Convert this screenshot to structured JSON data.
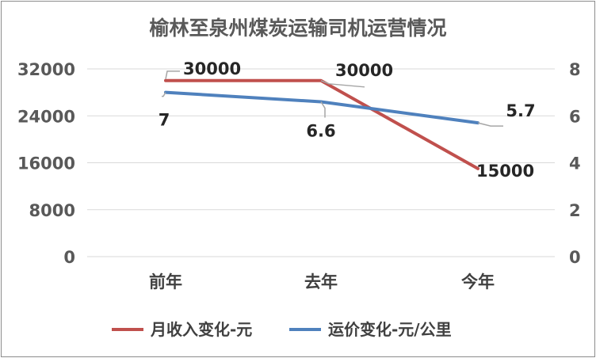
{
  "chart_data": {
    "type": "line",
    "title": "榆林至泉州煤炭运输司机运营情况",
    "categories": [
      "前年",
      "去年",
      "今年"
    ],
    "y_left": {
      "ticks": [
        "32000",
        "24000",
        "16000",
        "8000",
        "0"
      ],
      "ylim": [
        0,
        32000
      ]
    },
    "y_right": {
      "ticks": [
        "8",
        "6",
        "4",
        "2",
        "0"
      ],
      "ylim": [
        0,
        8
      ]
    },
    "grid": true,
    "legend_position": "bottom",
    "series": [
      {
        "name": "月收入变化-元",
        "axis": "left",
        "color": "#c0504d",
        "values": [
          30000,
          30000,
          15000
        ],
        "labels": [
          "30000",
          "30000",
          "15000"
        ]
      },
      {
        "name": "运价变化-元/公里",
        "axis": "right",
        "color": "#4f81bd",
        "values": [
          7,
          6.6,
          5.7
        ],
        "labels": [
          "7",
          "6.6",
          "5.7"
        ]
      }
    ]
  }
}
